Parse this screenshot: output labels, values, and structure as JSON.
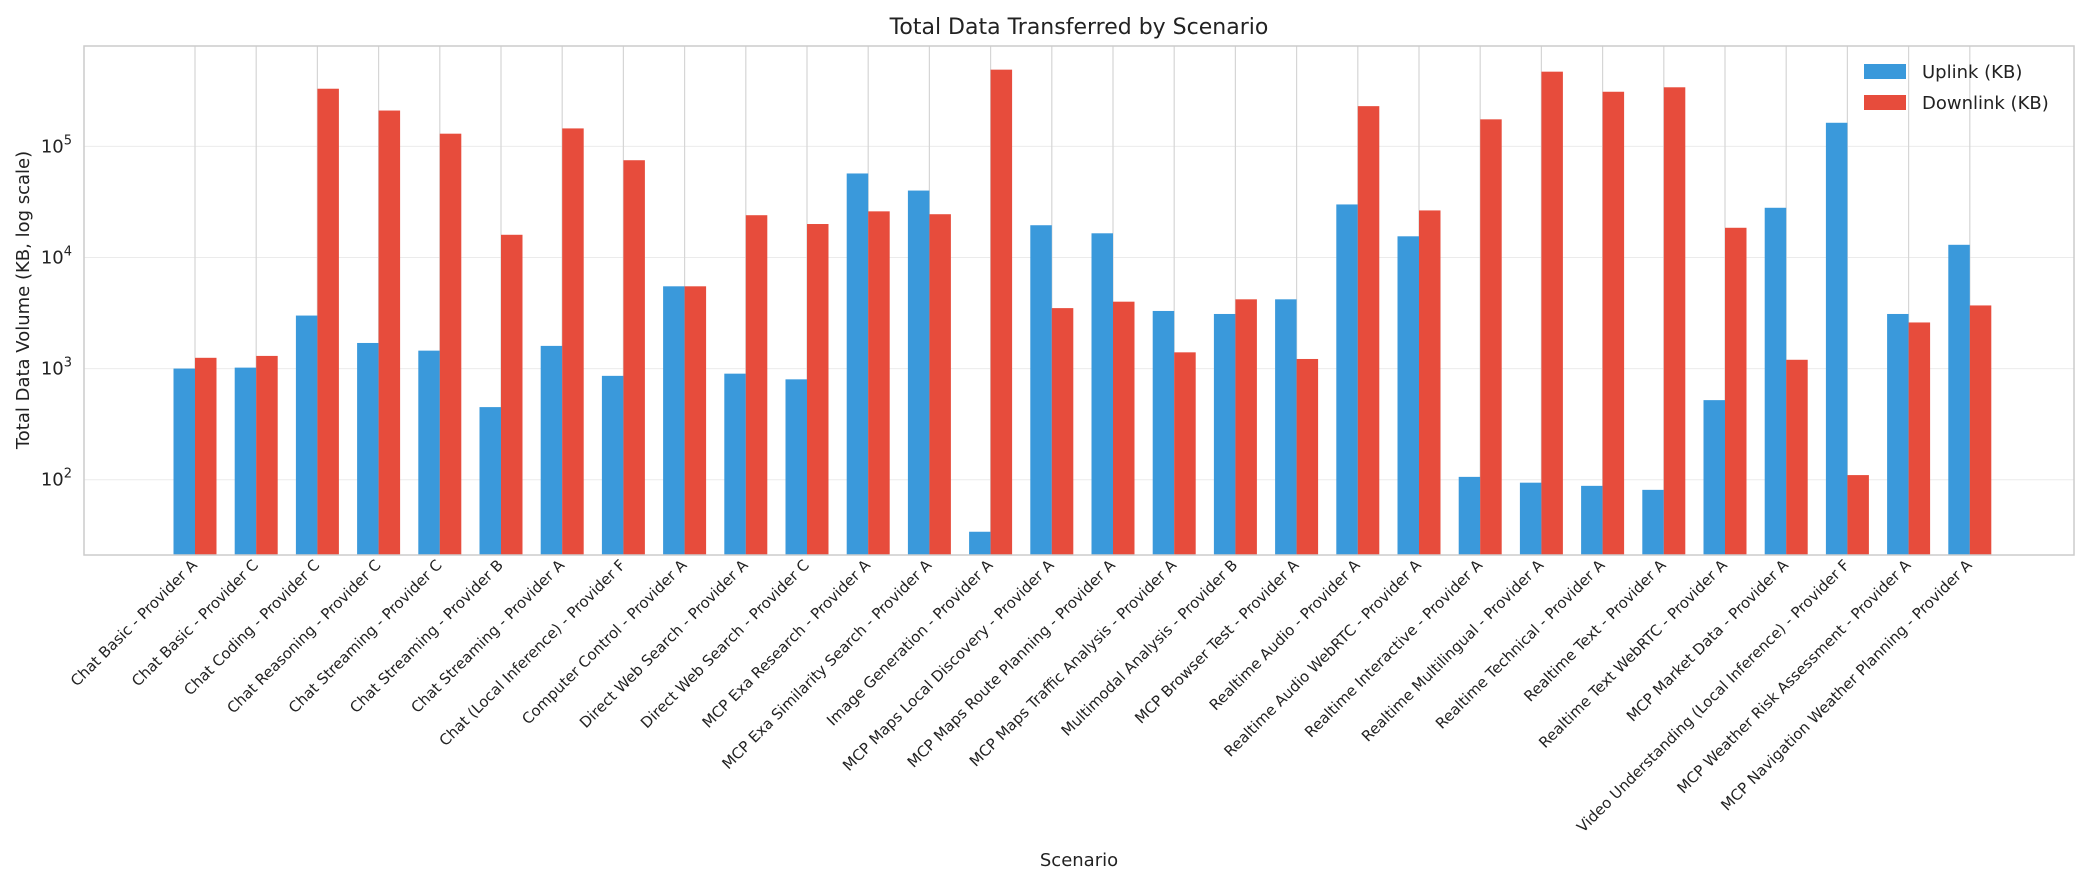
{
  "chart_data": {
    "type": "bar",
    "title": "Total Data Transferred by Scenario",
    "xlabel": "Scenario",
    "ylabel": "Total Data Volume (KB, log scale)",
    "yscale": "log",
    "ylim": [
      21,
      800000
    ],
    "yticks": [
      {
        "value": 100,
        "base": "10",
        "exp": "2"
      },
      {
        "value": 1000,
        "base": "10",
        "exp": "3"
      },
      {
        "value": 10000,
        "base": "10",
        "exp": "4"
      },
      {
        "value": 100000,
        "base": "10",
        "exp": "5"
      }
    ],
    "grid": true,
    "legend_position": "top-right",
    "categories": [
      "Chat Basic - Provider A",
      "Chat Basic - Provider C",
      "Chat Coding - Provider C",
      "Chat Reasoning - Provider C",
      "Chat Streaming - Provider C",
      "Chat Streaming - Provider B",
      "Chat Streaming - Provider A",
      "Chat (Local Inference) - Provider F",
      "Computer Control - Provider A",
      "Direct Web Search - Provider A",
      "Direct Web Search - Provider C",
      "MCP Exa Research - Provider A",
      "MCP Exa Similarity Search - Provider A",
      "Image Generation - Provider A",
      "MCP Maps Local Discovery - Provider A",
      "MCP Maps Route Planning - Provider A",
      "MCP Maps Traffic Analysis - Provider A",
      "Multimodal Analysis - Provider B",
      "MCP Browser Test - Provider A",
      "Realtime Audio - Provider A",
      "Realtime Audio WebRTC - Provider A",
      "Realtime Interactive - Provider A",
      "Realtime Multilingual - Provider A",
      "Realtime Technical - Provider A",
      "Realtime Text - Provider A",
      "Realtime Text WebRTC - Provider A",
      "MCP Market Data - Provider A",
      "Video Understanding (Local Inference) - Provider F",
      "MCP Weather Risk Assessment - Provider A",
      "MCP Navigation Weather Planning - Provider A"
    ],
    "series": [
      {
        "name": "Uplink (KB)",
        "color": "#3a99db",
        "values": [
          1000,
          1020,
          3000,
          1700,
          1450,
          450,
          1600,
          860,
          5500,
          900,
          800,
          57000,
          40000,
          34,
          19500,
          16500,
          3300,
          3100,
          4200,
          30000,
          15500,
          106,
          94,
          88,
          81,
          520,
          28000,
          163000,
          3100,
          13000
        ]
      },
      {
        "name": "Downlink (KB)",
        "color": "#e74c3c",
        "values": [
          1250,
          1300,
          330000,
          210000,
          130000,
          16000,
          145000,
          75000,
          5500,
          24000,
          20000,
          26000,
          24500,
          490000,
          3500,
          4000,
          1400,
          4200,
          1220,
          230000,
          26500,
          175000,
          470000,
          310000,
          340000,
          18500,
          1200,
          110,
          2600,
          3700
        ]
      }
    ]
  }
}
